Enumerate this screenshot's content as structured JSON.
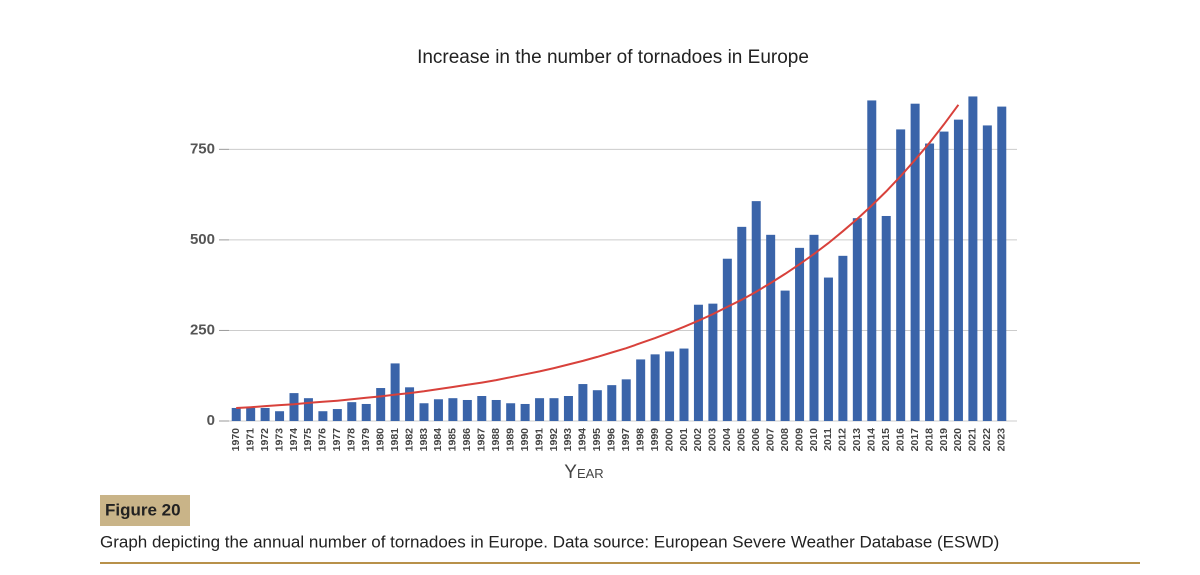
{
  "chart_data": {
    "type": "bar",
    "title": "Increase in the number of tornadoes in Europe",
    "x_label": "Year",
    "categories": [
      "1970",
      "1971",
      "1972",
      "1973",
      "1974",
      "1975",
      "1976",
      "1977",
      "1978",
      "1979",
      "1980",
      "1981",
      "1982",
      "1983",
      "1984",
      "1985",
      "1986",
      "1987",
      "1988",
      "1989",
      "1990",
      "1991",
      "1992",
      "1993",
      "1994",
      "1995",
      "1996",
      "1997",
      "1998",
      "1999",
      "2000",
      "2001",
      "2002",
      "2003",
      "2004",
      "2005",
      "2006",
      "2007",
      "2008",
      "2009",
      "2010",
      "2011",
      "2012",
      "2013",
      "2014",
      "2015",
      "2016",
      "2017",
      "2018",
      "2019",
      "2020",
      "2021",
      "2022",
      "2023"
    ],
    "values": [
      36,
      36,
      36,
      27,
      77,
      63,
      27,
      33,
      52,
      47,
      91,
      159,
      93,
      49,
      60,
      63,
      58,
      69,
      58,
      49,
      47,
      63,
      63,
      69,
      102,
      85,
      99,
      115,
      170,
      184,
      192,
      200,
      321,
      324,
      448,
      536,
      607,
      514,
      360,
      478,
      514,
      396,
      456,
      560,
      885,
      566,
      805,
      876,
      766,
      799,
      832,
      896,
      816,
      868
    ],
    "color": "#3a64a9",
    "trend": {
      "color": "#d8413b",
      "values": [
        36,
        38,
        41,
        44,
        46,
        50,
        53,
        56,
        60,
        64,
        68,
        73,
        77,
        82,
        88,
        94,
        100,
        106,
        113,
        121,
        129,
        137,
        146,
        156,
        166,
        177,
        189,
        201,
        215,
        229,
        244,
        260,
        277,
        295,
        315,
        335,
        357,
        381,
        406,
        433,
        461,
        491,
        524,
        558,
        595,
        634,
        676,
        721,
        768,
        819,
        873,
        null,
        null,
        null
      ]
    },
    "ylim": [
      0,
      900
    ],
    "yticks": [
      0,
      250,
      500,
      750
    ],
    "grid": true
  },
  "figure": {
    "label": "Figure 20",
    "caption": "Graph depicting the annual number of tornadoes in Europe. Data source: European Severe Weather Database (ESWD)"
  }
}
